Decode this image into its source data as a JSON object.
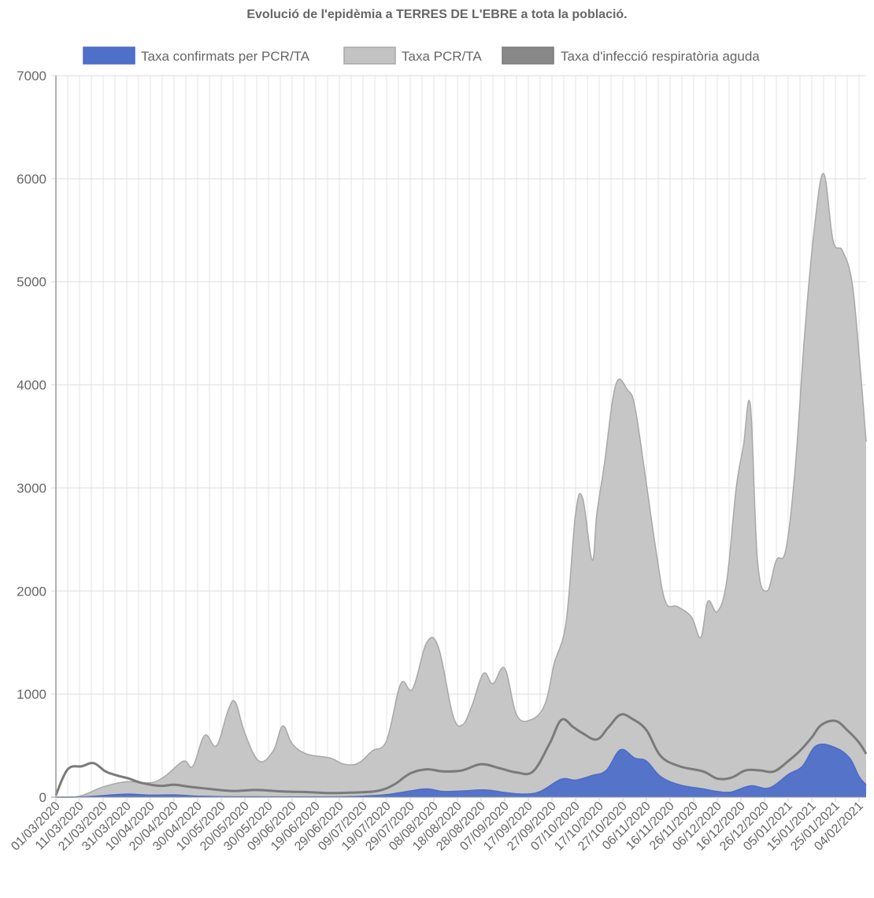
{
  "chart_data": {
    "type": "area",
    "title": "Evolució de l'epidèmia a TERRES DE L'EBRE a tota la població.",
    "ylim": [
      0,
      7000
    ],
    "y_ticks": [
      0,
      1000,
      2000,
      3000,
      4000,
      5000,
      6000,
      7000
    ],
    "x_start": "01/03/2020",
    "x_end": "07/02/2021",
    "x_tick_labels": [
      "01/03/2020",
      "11/03/2020",
      "21/03/2020",
      "31/03/2020",
      "10/04/2020",
      "20/04/2020",
      "30/04/2020",
      "10/05/2020",
      "20/05/2020",
      "30/05/2020",
      "09/06/2020",
      "19/06/2020",
      "29/06/2020",
      "09/07/2020",
      "19/07/2020",
      "29/07/2020",
      "08/08/2020",
      "18/08/2020",
      "28/08/2020",
      "07/09/2020",
      "17/09/2020",
      "27/09/2020",
      "07/10/2020",
      "17/10/2020",
      "27/10/2020",
      "06/11/2020",
      "16/11/2020",
      "26/11/2020",
      "06/12/2020",
      "16/12/2020",
      "26/12/2020",
      "05/01/2021",
      "15/01/2021",
      "25/01/2021",
      "04/02/2021"
    ],
    "grid": true,
    "legend_position": "top",
    "series": [
      {
        "name": "Taxa confirmats per PCR/TA",
        "type": "area",
        "color": "#4a6bc7",
        "fill": "#4f70c9",
        "points": [
          [
            "01/03/2020",
            0
          ],
          [
            "11/03/2020",
            2
          ],
          [
            "21/03/2020",
            15
          ],
          [
            "31/03/2020",
            30
          ],
          [
            "10/04/2020",
            20
          ],
          [
            "20/04/2020",
            22
          ],
          [
            "30/04/2020",
            10
          ],
          [
            "10/05/2020",
            5
          ],
          [
            "20/05/2020",
            4
          ],
          [
            "30/05/2020",
            3
          ],
          [
            "09/06/2020",
            3
          ],
          [
            "19/06/2020",
            3
          ],
          [
            "29/06/2020",
            4
          ],
          [
            "09/07/2020",
            10
          ],
          [
            "19/07/2020",
            25
          ],
          [
            "29/07/2020",
            60
          ],
          [
            "05/08/2020",
            80
          ],
          [
            "12/08/2020",
            55
          ],
          [
            "20/08/2020",
            60
          ],
          [
            "30/08/2020",
            70
          ],
          [
            "07/09/2020",
            45
          ],
          [
            "15/09/2020",
            30
          ],
          [
            "22/09/2020",
            55
          ],
          [
            "01/10/2020",
            175
          ],
          [
            "07/10/2020",
            165
          ],
          [
            "14/10/2020",
            210
          ],
          [
            "20/10/2020",
            260
          ],
          [
            "26/10/2020",
            460
          ],
          [
            "01/11/2020",
            380
          ],
          [
            "06/11/2020",
            350
          ],
          [
            "12/11/2020",
            200
          ],
          [
            "20/11/2020",
            120
          ],
          [
            "30/11/2020",
            80
          ],
          [
            "06/12/2020",
            55
          ],
          [
            "12/12/2020",
            50
          ],
          [
            "20/12/2020",
            110
          ],
          [
            "28/12/2020",
            90
          ],
          [
            "05/01/2021",
            220
          ],
          [
            "11/01/2021",
            300
          ],
          [
            "17/01/2021",
            500
          ],
          [
            "25/01/2021",
            480
          ],
          [
            "31/01/2021",
            380
          ],
          [
            "04/02/2021",
            200
          ],
          [
            "07/02/2021",
            120
          ]
        ]
      },
      {
        "name": "Taxa PCR/TA",
        "type": "area",
        "color": "#a8a8a8",
        "fill": "#c3c3c3",
        "points": [
          [
            "01/03/2020",
            0
          ],
          [
            "11/03/2020",
            10
          ],
          [
            "21/03/2020",
            100
          ],
          [
            "31/03/2020",
            150
          ],
          [
            "10/04/2020",
            140
          ],
          [
            "16/04/2020",
            200
          ],
          [
            "24/04/2020",
            350
          ],
          [
            "28/04/2020",
            300
          ],
          [
            "03/05/2020",
            600
          ],
          [
            "08/05/2020",
            500
          ],
          [
            "13/05/2020",
            850
          ],
          [
            "16/05/2020",
            920
          ],
          [
            "20/05/2020",
            620
          ],
          [
            "26/05/2020",
            350
          ],
          [
            "01/06/2020",
            450
          ],
          [
            "05/06/2020",
            690
          ],
          [
            "09/06/2020",
            520
          ],
          [
            "15/06/2020",
            420
          ],
          [
            "25/06/2020",
            380
          ],
          [
            "01/07/2020",
            320
          ],
          [
            "07/07/2020",
            330
          ],
          [
            "13/07/2020",
            450
          ],
          [
            "19/07/2020",
            550
          ],
          [
            "25/07/2020",
            1100
          ],
          [
            "30/07/2020",
            1050
          ],
          [
            "05/08/2020",
            1500
          ],
          [
            "10/08/2020",
            1450
          ],
          [
            "16/08/2020",
            800
          ],
          [
            "20/08/2020",
            700
          ],
          [
            "24/08/2020",
            880
          ],
          [
            "29/08/2020",
            1200
          ],
          [
            "02/09/2020",
            1100
          ],
          [
            "07/09/2020",
            1250
          ],
          [
            "12/09/2020",
            800
          ],
          [
            "18/09/2020",
            750
          ],
          [
            "24/09/2020",
            900
          ],
          [
            "28/09/2020",
            1300
          ],
          [
            "03/10/2020",
            1700
          ],
          [
            "07/10/2020",
            2750
          ],
          [
            "10/10/2020",
            2900
          ],
          [
            "14/10/2020",
            2300
          ],
          [
            "16/10/2020",
            2750
          ],
          [
            "19/10/2020",
            3200
          ],
          [
            "24/10/2020",
            4000
          ],
          [
            "29/10/2020",
            3950
          ],
          [
            "01/11/2020",
            3800
          ],
          [
            "05/11/2020",
            3200
          ],
          [
            "10/11/2020",
            2400
          ],
          [
            "14/11/2020",
            1900
          ],
          [
            "19/11/2020",
            1850
          ],
          [
            "25/11/2020",
            1750
          ],
          [
            "29/11/2020",
            1550
          ],
          [
            "02/12/2020",
            1900
          ],
          [
            "06/12/2020",
            1800
          ],
          [
            "10/12/2020",
            2100
          ],
          [
            "14/12/2020",
            3000
          ],
          [
            "17/12/2020",
            3400
          ],
          [
            "20/12/2020",
            3800
          ],
          [
            "23/12/2020",
            2300
          ],
          [
            "27/12/2020",
            2000
          ],
          [
            "31/12/2020",
            2300
          ],
          [
            "04/01/2021",
            2400
          ],
          [
            "08/01/2021",
            3200
          ],
          [
            "12/01/2021",
            4500
          ],
          [
            "16/01/2021",
            5500
          ],
          [
            "20/01/2021",
            6050
          ],
          [
            "24/01/2021",
            5400
          ],
          [
            "28/01/2021",
            5300
          ],
          [
            "01/02/2021",
            5000
          ],
          [
            "04/02/2021",
            4300
          ],
          [
            "07/02/2021",
            3450
          ]
        ]
      },
      {
        "name": "Taxa d'infecció respiratòria aguda",
        "type": "line",
        "color": "#7a7a7a",
        "fill": "#888888",
        "points": [
          [
            "01/03/2020",
            20
          ],
          [
            "06/03/2020",
            270
          ],
          [
            "12/03/2020",
            300
          ],
          [
            "17/03/2020",
            330
          ],
          [
            "22/03/2020",
            250
          ],
          [
            "27/03/2020",
            210
          ],
          [
            "01/04/2020",
            180
          ],
          [
            "06/04/2020",
            140
          ],
          [
            "14/04/2020",
            110
          ],
          [
            "20/04/2020",
            120
          ],
          [
            "27/04/2020",
            100
          ],
          [
            "05/05/2020",
            80
          ],
          [
            "15/05/2020",
            60
          ],
          [
            "25/05/2020",
            70
          ],
          [
            "05/06/2020",
            55
          ],
          [
            "15/06/2020",
            50
          ],
          [
            "25/06/2020",
            40
          ],
          [
            "05/07/2020",
            45
          ],
          [
            "15/07/2020",
            60
          ],
          [
            "22/07/2020",
            120
          ],
          [
            "29/07/2020",
            230
          ],
          [
            "05/08/2020",
            270
          ],
          [
            "12/08/2020",
            250
          ],
          [
            "20/08/2020",
            260
          ],
          [
            "28/08/2020",
            320
          ],
          [
            "05/09/2020",
            280
          ],
          [
            "12/09/2020",
            240
          ],
          [
            "19/09/2020",
            250
          ],
          [
            "26/09/2020",
            520
          ],
          [
            "01/10/2020",
            750
          ],
          [
            "06/10/2020",
            680
          ],
          [
            "10/10/2020",
            620
          ],
          [
            "16/10/2020",
            560
          ],
          [
            "21/10/2020",
            680
          ],
          [
            "26/10/2020",
            800
          ],
          [
            "31/10/2020",
            760
          ],
          [
            "06/11/2020",
            650
          ],
          [
            "12/11/2020",
            400
          ],
          [
            "20/11/2020",
            300
          ],
          [
            "30/11/2020",
            250
          ],
          [
            "06/12/2020",
            180
          ],
          [
            "12/12/2020",
            190
          ],
          [
            "18/12/2020",
            260
          ],
          [
            "24/12/2020",
            260
          ],
          [
            "30/12/2020",
            250
          ],
          [
            "05/01/2021",
            350
          ],
          [
            "10/01/2021",
            450
          ],
          [
            "15/01/2021",
            580
          ],
          [
            "19/01/2021",
            700
          ],
          [
            "25/01/2021",
            740
          ],
          [
            "30/01/2021",
            650
          ],
          [
            "04/02/2021",
            530
          ],
          [
            "07/02/2021",
            420
          ]
        ]
      }
    ]
  }
}
